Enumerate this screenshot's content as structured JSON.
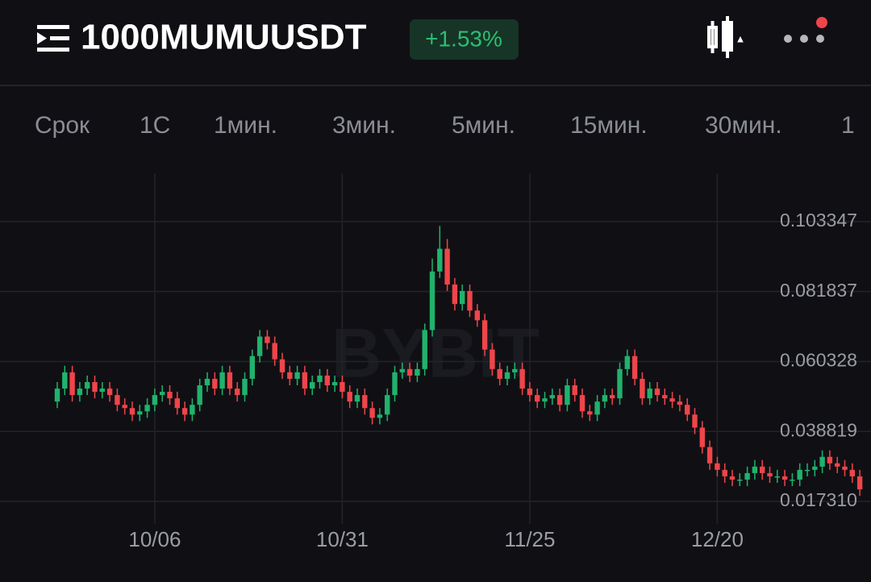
{
  "header": {
    "symbol": "1000MUMUUSDT",
    "change": "+1.53%"
  },
  "tabs": [
    "Срок",
    "1С",
    "1мин.",
    "3мин.",
    "5мин.",
    "15мин.",
    "30мин.",
    "1"
  ],
  "watermark": "BYBIT",
  "chart_data": {
    "type": "candlestick",
    "categories": [
      null,
      null,
      null,
      null,
      null,
      null,
      null,
      null,
      null,
      null,
      null,
      null,
      null,
      "10/06",
      null,
      null,
      null,
      null,
      null,
      null,
      null,
      null,
      null,
      null,
      null,
      null,
      null,
      null,
      null,
      null,
      null,
      null,
      null,
      null,
      null,
      null,
      null,
      null,
      "10/31",
      null,
      null,
      null,
      null,
      null,
      null,
      null,
      null,
      null,
      null,
      null,
      null,
      null,
      null,
      null,
      null,
      null,
      null,
      null,
      null,
      null,
      null,
      null,
      null,
      "11/25",
      null,
      null,
      null,
      null,
      null,
      null,
      null,
      null,
      null,
      null,
      null,
      null,
      null,
      null,
      null,
      null,
      null,
      null,
      null,
      null,
      null,
      null,
      null,
      null,
      "12/20",
      null,
      null,
      null,
      null,
      null,
      null,
      null,
      null,
      null,
      null,
      null,
      null,
      null,
      null,
      null,
      null,
      null,
      null,
      null
    ],
    "open": [
      0.048,
      0.052,
      0.057,
      0.05,
      0.052,
      0.054,
      0.051,
      0.052,
      0.05,
      0.047,
      0.046,
      0.044,
      0.045,
      0.047,
      0.05,
      0.051,
      0.049,
      0.046,
      0.044,
      0.047,
      0.053,
      0.055,
      0.052,
      0.057,
      0.052,
      0.05,
      0.055,
      0.062,
      0.068,
      0.066,
      0.061,
      0.057,
      0.055,
      0.057,
      0.052,
      0.054,
      0.056,
      0.053,
      0.054,
      0.051,
      0.048,
      0.05,
      0.046,
      0.043,
      0.044,
      0.05,
      0.057,
      0.058,
      0.056,
      0.058,
      0.07,
      0.088,
      0.095,
      0.084,
      0.078,
      0.082,
      0.076,
      0.073,
      0.064,
      0.058,
      0.055,
      0.057,
      0.058,
      0.052,
      0.05,
      0.048,
      0.049,
      0.05,
      0.047,
      0.053,
      0.05,
      0.045,
      0.044,
      0.048,
      0.05,
      0.049,
      0.058,
      0.062,
      0.055,
      0.049,
      0.052,
      0.05,
      0.049,
      0.048,
      0.047,
      0.044,
      0.04,
      0.034,
      0.029,
      0.027,
      0.025,
      0.024,
      0.024,
      0.026,
      0.028,
      0.026,
      0.025,
      0.025,
      0.024,
      0.024,
      0.027,
      0.027,
      0.028,
      0.031,
      0.029,
      0.028,
      0.027,
      0.025
    ],
    "high": [
      0.054,
      0.059,
      0.059,
      0.054,
      0.056,
      0.056,
      0.054,
      0.054,
      0.052,
      0.049,
      0.048,
      0.047,
      0.049,
      0.052,
      0.053,
      0.053,
      0.051,
      0.048,
      0.049,
      0.055,
      0.057,
      0.057,
      0.059,
      0.059,
      0.054,
      0.057,
      0.064,
      0.07,
      0.07,
      0.068,
      0.063,
      0.059,
      0.059,
      0.059,
      0.056,
      0.058,
      0.058,
      0.056,
      0.056,
      0.053,
      0.052,
      0.052,
      0.048,
      0.046,
      0.052,
      0.059,
      0.06,
      0.06,
      0.06,
      0.072,
      0.092,
      0.102,
      0.098,
      0.086,
      0.084,
      0.084,
      0.078,
      0.075,
      0.066,
      0.06,
      0.059,
      0.06,
      0.06,
      0.054,
      0.052,
      0.051,
      0.052,
      0.052,
      0.055,
      0.055,
      0.052,
      0.047,
      0.05,
      0.052,
      0.052,
      0.06,
      0.064,
      0.064,
      0.057,
      0.054,
      0.054,
      0.052,
      0.051,
      0.05,
      0.049,
      0.046,
      0.042,
      0.036,
      0.031,
      0.029,
      0.027,
      0.026,
      0.028,
      0.03,
      0.03,
      0.028,
      0.027,
      0.027,
      0.026,
      0.029,
      0.029,
      0.03,
      0.033,
      0.033,
      0.031,
      0.03,
      0.029,
      0.027
    ],
    "low": [
      0.046,
      0.05,
      0.048,
      0.048,
      0.05,
      0.049,
      0.049,
      0.048,
      0.045,
      0.044,
      0.042,
      0.042,
      0.043,
      0.045,
      0.048,
      0.047,
      0.044,
      0.042,
      0.042,
      0.045,
      0.051,
      0.05,
      0.05,
      0.05,
      0.048,
      0.048,
      0.053,
      0.06,
      0.064,
      0.059,
      0.055,
      0.053,
      0.053,
      0.05,
      0.05,
      0.052,
      0.051,
      0.051,
      0.049,
      0.046,
      0.046,
      0.044,
      0.041,
      0.041,
      0.042,
      0.048,
      0.055,
      0.054,
      0.054,
      0.056,
      0.068,
      0.086,
      0.082,
      0.076,
      0.076,
      0.074,
      0.071,
      0.062,
      0.056,
      0.053,
      0.053,
      0.055,
      0.05,
      0.048,
      0.046,
      0.046,
      0.047,
      0.045,
      0.045,
      0.048,
      0.043,
      0.042,
      0.042,
      0.046,
      0.047,
      0.047,
      0.056,
      0.053,
      0.047,
      0.047,
      0.048,
      0.047,
      0.046,
      0.045,
      0.042,
      0.038,
      0.032,
      0.027,
      0.025,
      0.023,
      0.022,
      0.022,
      0.022,
      0.024,
      0.024,
      0.023,
      0.023,
      0.022,
      0.022,
      0.022,
      0.025,
      0.025,
      0.026,
      0.027,
      0.026,
      0.025,
      0.023,
      0.019
    ],
    "close": [
      0.052,
      0.057,
      0.05,
      0.052,
      0.054,
      0.051,
      0.052,
      0.05,
      0.047,
      0.046,
      0.044,
      0.045,
      0.047,
      0.05,
      0.051,
      0.049,
      0.046,
      0.044,
      0.047,
      0.053,
      0.055,
      0.052,
      0.057,
      0.052,
      0.05,
      0.055,
      0.062,
      0.068,
      0.066,
      0.061,
      0.057,
      0.055,
      0.057,
      0.052,
      0.054,
      0.056,
      0.053,
      0.054,
      0.051,
      0.048,
      0.05,
      0.046,
      0.043,
      0.044,
      0.05,
      0.057,
      0.058,
      0.056,
      0.058,
      0.07,
      0.088,
      0.095,
      0.084,
      0.078,
      0.082,
      0.076,
      0.073,
      0.064,
      0.058,
      0.055,
      0.057,
      0.058,
      0.052,
      0.05,
      0.048,
      0.049,
      0.05,
      0.047,
      0.053,
      0.05,
      0.045,
      0.044,
      0.048,
      0.05,
      0.049,
      0.058,
      0.062,
      0.055,
      0.049,
      0.052,
      0.05,
      0.049,
      0.048,
      0.047,
      0.044,
      0.04,
      0.034,
      0.029,
      0.027,
      0.025,
      0.024,
      0.024,
      0.026,
      0.028,
      0.026,
      0.025,
      0.025,
      0.024,
      0.024,
      0.027,
      0.027,
      0.028,
      0.031,
      0.029,
      0.028,
      0.027,
      0.025,
      0.021
    ],
    "up_color": "#20b26c",
    "down_color": "#ef454a",
    "ylim": [
      0.0116,
      0.1182
    ],
    "yticks": [
      {
        "value": 0.01731,
        "label": "0.017310"
      },
      0.038819,
      0.060328,
      0.081837,
      0.103347
    ],
    "grid": true
  }
}
